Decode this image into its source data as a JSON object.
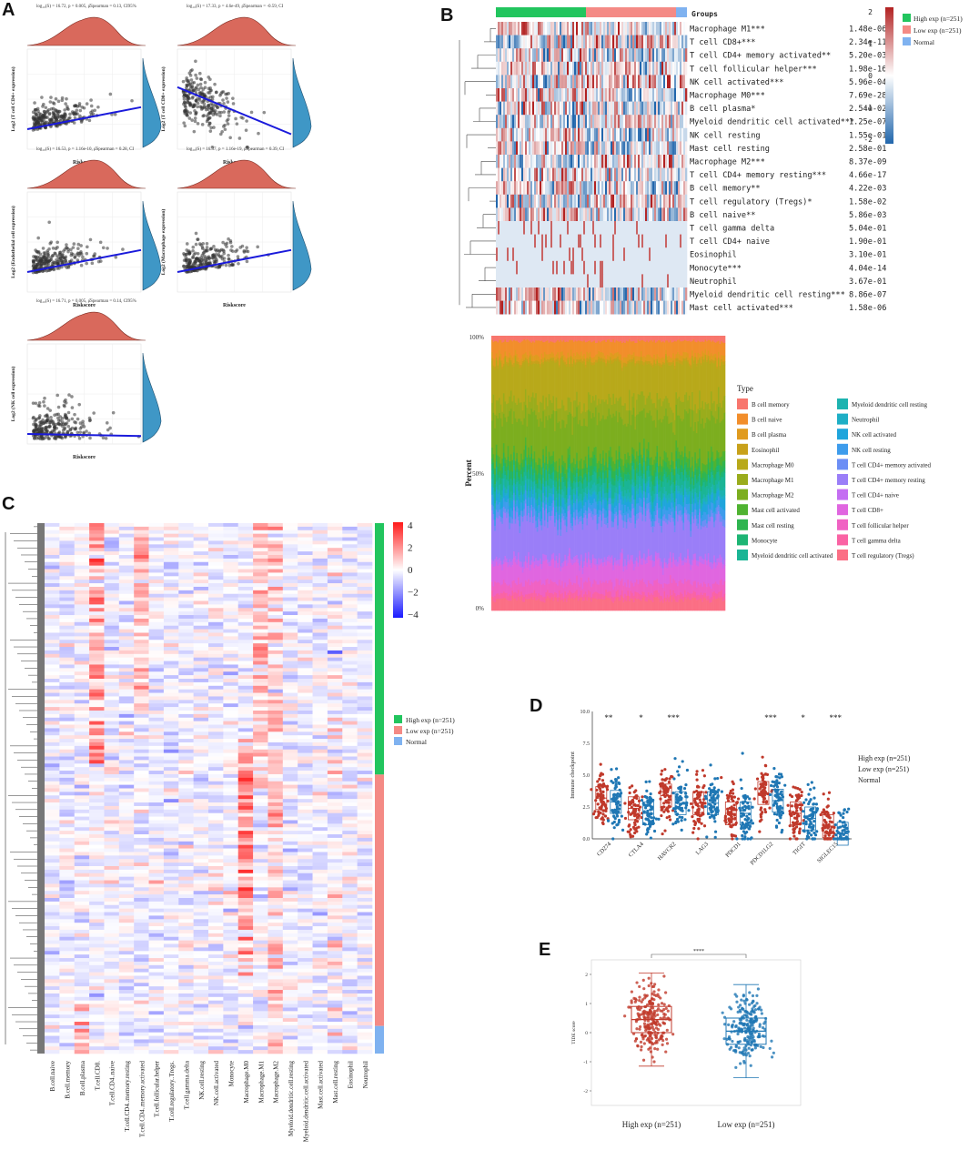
{
  "panels": {
    "a": "A",
    "b": "B",
    "c": "C",
    "d": "D",
    "e": "E"
  },
  "colors": {
    "high": "#22c55e",
    "low": "#f48a85",
    "normal": "#7fb2f0",
    "red": "#c0392b",
    "blue": "#1f77b4"
  },
  "panelA": {
    "plots": [
      {
        "stat": "log₁₀(S) = 16.72, p = 0.005, ρ̂Spearman = 0.13, CI95%",
        "ylabel": "Log2 (T cell CD4+ expression)",
        "xlabel": "Riskscore",
        "trend": "up"
      },
      {
        "stat": "log₁₀(S) = 17.33, p = 4.6e-49, ρ̂Spearman = -0.59, CI",
        "ylabel": "Log2 (T cell CD8+ expression)",
        "xlabel": "Riskscore",
        "trend": "down"
      },
      {
        "stat": "log₁₀(S) = 16.53, p = 1.16e-10, ρ̂Spearman = 0.28, CI",
        "ylabel": "Log2 (Endothelial cell expression)",
        "xlabel": "Riskscore",
        "trend": "up"
      },
      {
        "stat": "log₁₀(S) = 16.37, p = 1.16e-19, ρ̂Spearman = 0.39, CI",
        "ylabel": "Log2 (Macrophage expression)",
        "xlabel": "Riskscore",
        "trend": "up"
      },
      {
        "stat": "log₁₀(S) = 16.71, p = 0.005, ρ̂Spearman = 0.14, CI95%",
        "ylabel": "Log2 (NK cell expression)",
        "xlabel": "Riskscore",
        "trend": "flat"
      }
    ]
  },
  "panelB": {
    "groups_title": "Groups",
    "legend": [
      {
        "label": "High exp (n=251)",
        "key": "high"
      },
      {
        "label": "Low exp (n=251)",
        "key": "low"
      },
      {
        "label": "Normal",
        "key": "normal"
      }
    ],
    "scale": [
      "2",
      "1",
      "0",
      "-1",
      "-2"
    ],
    "rows": [
      {
        "name": "Macrophage M1***",
        "p": "1.48e-06"
      },
      {
        "name": "T cell CD8+***",
        "p": "2.34e-11"
      },
      {
        "name": "T cell CD4+ memory activated**",
        "p": "5.20e-03"
      },
      {
        "name": "T cell follicular helper***",
        "p": "1.98e-16"
      },
      {
        "name": "NK cell activated***",
        "p": "5.96e-04"
      },
      {
        "name": "Macrophage M0***",
        "p": "7.69e-28"
      },
      {
        "name": "B cell plasma*",
        "p": "2.54e-02"
      },
      {
        "name": "Myeloid dendritic cell activated***",
        "p": "1.25e-07"
      },
      {
        "name": "NK cell resting",
        "p": "1.55e-01"
      },
      {
        "name": "Mast cell resting",
        "p": "2.58e-01"
      },
      {
        "name": "Macrophage M2***",
        "p": "8.37e-09"
      },
      {
        "name": "T cell CD4+ memory resting***",
        "p": "4.66e-17"
      },
      {
        "name": "B cell memory**",
        "p": "4.22e-03"
      },
      {
        "name": "T cell regulatory (Tregs)*",
        "p": "1.58e-02"
      },
      {
        "name": "B cell naive**",
        "p": "5.86e-03"
      },
      {
        "name": "T cell gamma delta",
        "p": "5.04e-01"
      },
      {
        "name": "T cell CD4+ naive",
        "p": "1.90e-01"
      },
      {
        "name": "Eosinophil",
        "p": "3.10e-01"
      },
      {
        "name": "Monocyte***",
        "p": "4.04e-14"
      },
      {
        "name": "Neutrophil",
        "p": "3.67e-01"
      },
      {
        "name": "Myeloid dendritic cell resting***",
        "p": "8.86e-07"
      },
      {
        "name": "Mast cell activated***",
        "p": "1.58e-06"
      }
    ],
    "stack": {
      "ylabel": "Percent",
      "ticks": [
        "100%",
        "50%",
        "0%"
      ],
      "type_title": "Type",
      "types": [
        {
          "label": "B cell memory",
          "color": "#f8766d"
        },
        {
          "label": "B cell naive",
          "color": "#f28e2b"
        },
        {
          "label": "B cell plasma",
          "color": "#e09b1f"
        },
        {
          "label": "Eosinophil",
          "color": "#c8a11a"
        },
        {
          "label": "Macrophage M0",
          "color": "#b8a91a"
        },
        {
          "label": "Macrophage M1",
          "color": "#9aac1c"
        },
        {
          "label": "Macrophage M2",
          "color": "#7cae1f"
        },
        {
          "label": "Mast cell activated",
          "color": "#4fb331"
        },
        {
          "label": "Mast cell resting",
          "color": "#2fb550"
        },
        {
          "label": "Monocyte",
          "color": "#1db574"
        },
        {
          "label": "Myeloid dendritic cell activated",
          "color": "#1ab595"
        },
        {
          "label": "Myeloid dendritic cell resting",
          "color": "#1db3b0"
        },
        {
          "label": "Neutrophil",
          "color": "#1eafc6"
        },
        {
          "label": "NK cell activated",
          "color": "#1fa5dc"
        },
        {
          "label": "NK cell resting",
          "color": "#3d9cec"
        },
        {
          "label": "T cell CD4+ memory activated",
          "color": "#6c8ef5"
        },
        {
          "label": "T cell CD4+ memory resting",
          "color": "#9a7ef8"
        },
        {
          "label": "T cell CD4+ naive",
          "color": "#c46ef2"
        },
        {
          "label": "T cell CD8+",
          "color": "#e066e0"
        },
        {
          "label": "T cell follicular helper",
          "color": "#f062c3"
        },
        {
          "label": "T cell gamma delta",
          "color": "#fa63a4"
        },
        {
          "label": "T cell regulatory (Tregs)",
          "color": "#fb6f85"
        }
      ]
    }
  },
  "panelC": {
    "scale": [
      "4",
      "2",
      "0",
      "−2",
      "−4"
    ],
    "legend": [
      {
        "label": "High exp (n=251)",
        "key": "high"
      },
      {
        "label": "Low exp (n=251)",
        "key": "low"
      },
      {
        "label": "Normal",
        "key": "normal"
      }
    ],
    "columns": [
      "B.cell.naive",
      "B.cell.memory",
      "B.cell.plasma",
      "T.cell.CD8.",
      "T.cell.CD4..naive",
      "T.cell.CD4..memory.resting",
      "T.cell.CD4..memory.activated",
      "T.cell.follicular.helper",
      "T.cell.regulatory..Tregs.",
      "T.cell.gamma.delta",
      "NK.cell.resting",
      "NK.cell.activated",
      "Monocyte",
      "Macrophage.M0",
      "Macrophage.M1",
      "Macrophage.M2",
      "Myeloid.dendritic.cell.resting",
      "Myeloid.dendritic.cell.activated",
      "Mast.cell.activated",
      "Mast.cell.resting",
      "Eosinophil",
      "Neutrophil"
    ]
  },
  "chart_data": [
    {
      "type": "scatter",
      "title": "Panel D",
      "ylabel": "Immune checkpoint",
      "ylim": [
        0,
        10
      ],
      "yticks": [
        "10.0",
        "7.5",
        "5.0",
        "2.5",
        "0.0"
      ],
      "categories": [
        "CD274",
        "CTLA4",
        "HAVCR2",
        "LAG3",
        "PDCD1",
        "PDCD1LG2",
        "TIGIT",
        "SIGLEC15"
      ],
      "significance": [
        "**",
        "*",
        "***",
        "",
        "",
        "***",
        "*",
        "***"
      ],
      "series": [
        {
          "name": "High exp (n=251)",
          "medians": [
            3.2,
            2.4,
            3.4,
            2.8,
            2.0,
            3.6,
            2.0,
            1.0
          ]
        },
        {
          "name": "Low exp (n=251)",
          "medians": [
            2.9,
            2.0,
            2.8,
            2.8,
            2.0,
            3.0,
            1.6,
            0.4
          ]
        },
        {
          "name": "Normal",
          "medians": []
        }
      ],
      "legend": [
        "High exp (n=251)",
        "Low exp (n=251)",
        "Normal"
      ]
    },
    {
      "type": "scatter",
      "title": "Panel E",
      "ylabel": "TIDE score",
      "yticks": [
        "2",
        "1",
        "0",
        "-1",
        "-2"
      ],
      "ylim": [
        -2.5,
        2.5
      ],
      "categories": [
        "High exp (n=251)",
        "Low exp (n=251)"
      ],
      "series": [
        {
          "name": "TIDE",
          "medians": [
            0.45,
            0.05
          ]
        }
      ],
      "significance": "****"
    }
  ]
}
